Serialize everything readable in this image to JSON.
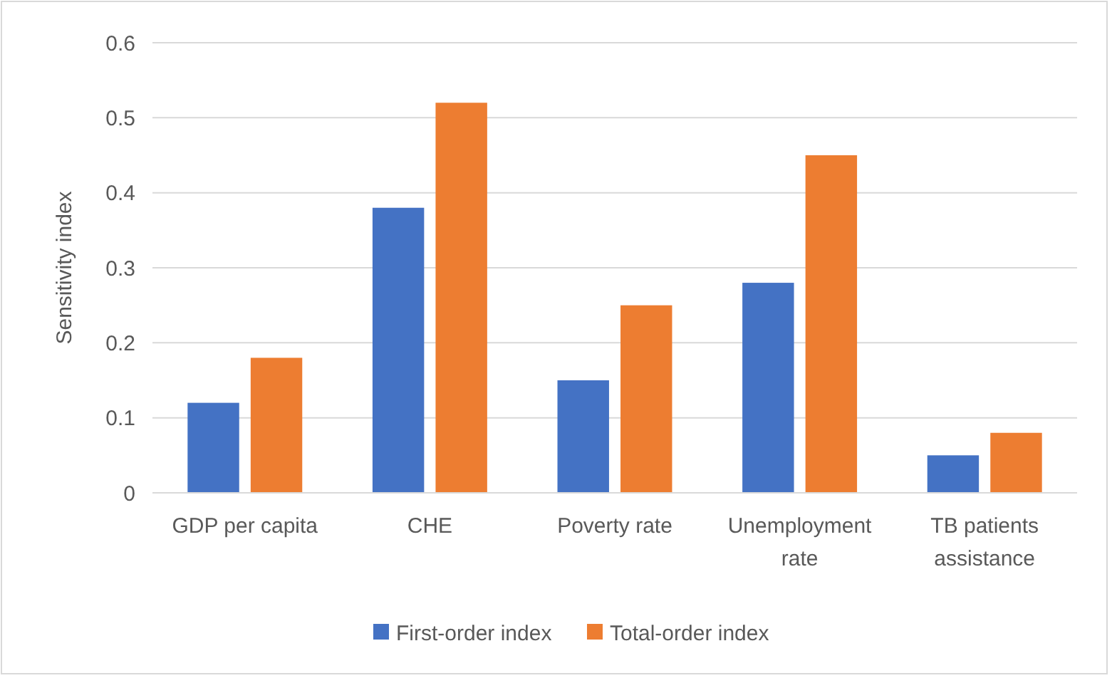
{
  "chart_data": {
    "type": "bar",
    "ylabel": "Sensitivity index",
    "categories": [
      "GDP per capita",
      "CHE",
      "Poverty rate",
      "Unemployment rate",
      "TB patients assistance"
    ],
    "series": [
      {
        "name": "First-order index",
        "color": "#4472c4",
        "values": [
          0.12,
          0.38,
          0.15,
          0.28,
          0.05
        ]
      },
      {
        "name": "Total-order index",
        "color": "#ed7d31",
        "values": [
          0.18,
          0.52,
          0.25,
          0.45,
          0.08
        ]
      }
    ],
    "ylim": [
      0,
      0.6
    ],
    "yticks": [
      0,
      0.1,
      0.2,
      0.3,
      0.4,
      0.5,
      0.6
    ],
    "grid": "y",
    "legend": "bottom"
  }
}
